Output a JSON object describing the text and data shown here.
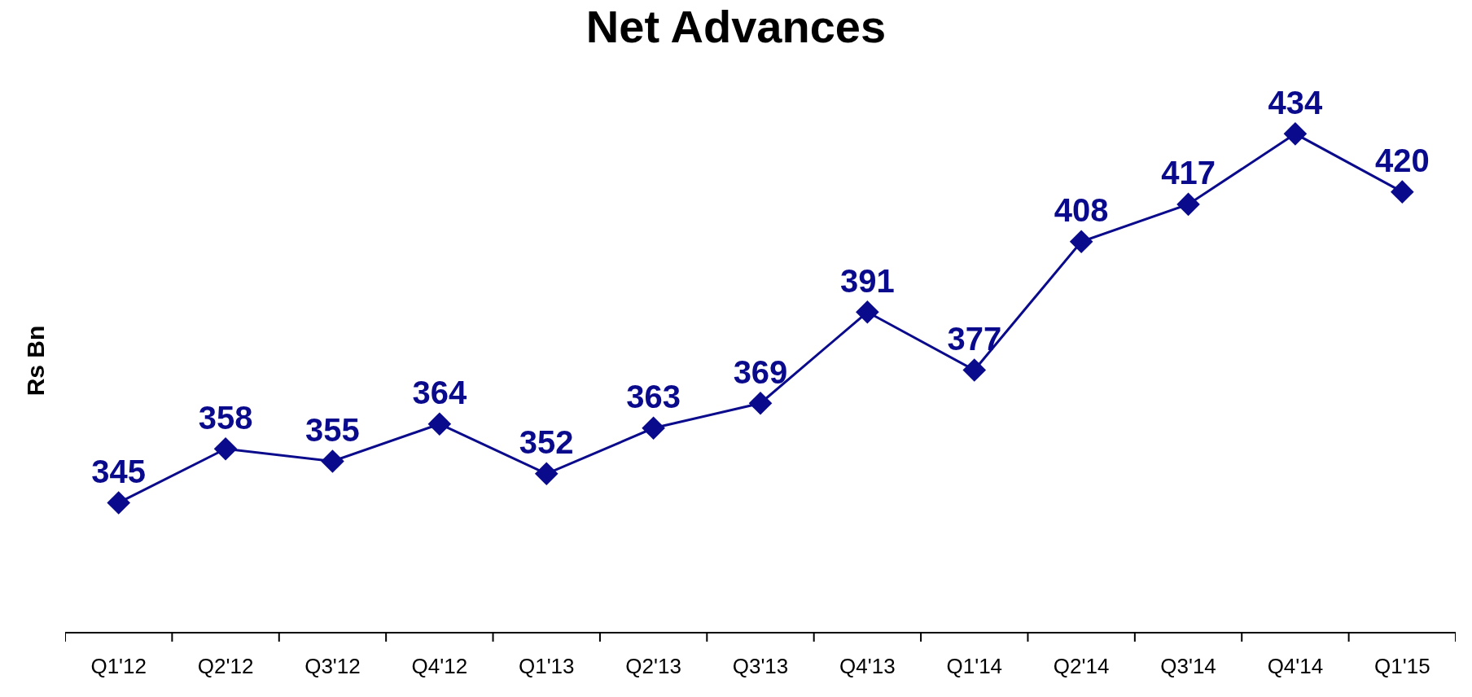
{
  "chart_data": {
    "type": "line",
    "title": "Net Advances",
    "ylabel": "Rs Bn",
    "categories": [
      "Q1'12",
      "Q2'12",
      "Q3'12",
      "Q4'12",
      "Q1'13",
      "Q2'13",
      "Q3'13",
      "Q4'13",
      "Q1'14",
      "Q2'14",
      "Q3'14",
      "Q4'14",
      "Q1'15"
    ],
    "series": [
      {
        "color": "#0a0a8c",
        "values": [
          345,
          358,
          355,
          364,
          352,
          363,
          369,
          391,
          377,
          408,
          417,
          434,
          420
        ]
      }
    ],
    "relative": false,
    "data_labels": true,
    "marker": "diamond",
    "line_style": "solid",
    "legend": false
  }
}
